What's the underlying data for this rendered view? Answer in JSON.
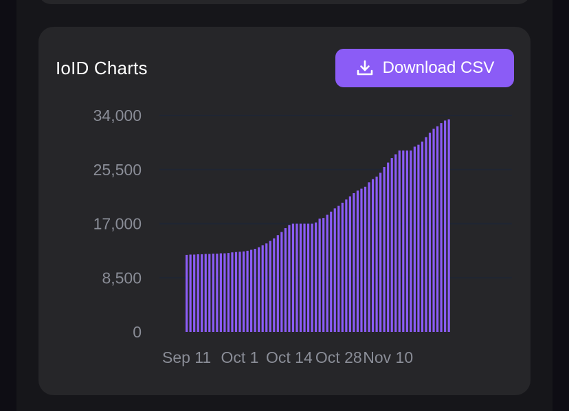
{
  "card": {
    "title": "IoID Charts",
    "download_label": "Download CSV",
    "download_icon": "download-icon"
  },
  "colors": {
    "accent": "#8b5cf6",
    "card_bg": "#262629",
    "page_bg": "#16161a",
    "tick_text": "#8a8d97"
  },
  "chart_data": {
    "type": "bar",
    "title": "IoID Charts",
    "xlabel": "",
    "ylabel": "",
    "ylim": [
      0,
      34000
    ],
    "yticks": [
      "0",
      "8,500",
      "17,000",
      "25,500",
      "34,000"
    ],
    "ytick_values": [
      0,
      8500,
      17000,
      25500,
      34000
    ],
    "xtick_labels": [
      "Sep 11",
      "Oct 1",
      "Oct 14",
      "Oct 28",
      "Nov 10"
    ],
    "xtick_bar_index": [
      0,
      14,
      27,
      40,
      53
    ],
    "grid": true,
    "values": [
      12100,
      12150,
      12150,
      12200,
      12200,
      12250,
      12250,
      12300,
      12300,
      12350,
      12350,
      12400,
      12500,
      12550,
      12600,
      12650,
      12750,
      12900,
      13050,
      13300,
      13600,
      13900,
      14300,
      14700,
      15200,
      15700,
      16300,
      16800,
      17000,
      17000,
      17000,
      17000,
      17000,
      17000,
      17200,
      17800,
      17900,
      18400,
      18900,
      19400,
      19800,
      20300,
      20800,
      21300,
      21800,
      22200,
      22500,
      22800,
      23500,
      24000,
      24400,
      25000,
      25900,
      26600,
      27300,
      27900,
      28500,
      28500,
      28500,
      28500,
      29100,
      29400,
      29900,
      30600,
      31300,
      31900,
      32300,
      32800,
      33200,
      33400
    ]
  }
}
